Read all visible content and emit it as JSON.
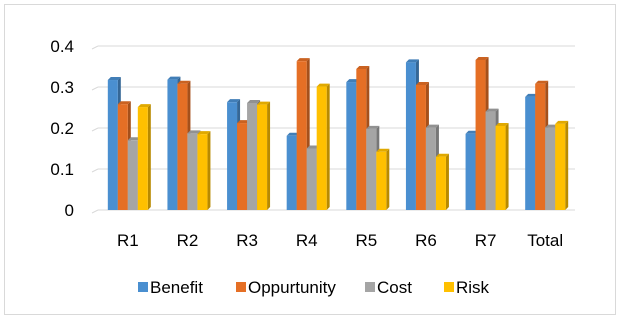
{
  "chart_data": {
    "type": "bar",
    "categories": [
      "R1",
      "R2",
      "R3",
      "R4",
      "R5",
      "R6",
      "R7",
      "Total"
    ],
    "series": [
      {
        "name": "Benefit",
        "color": "#4a8fd0",
        "values": [
          0.317,
          0.318,
          0.263,
          0.181,
          0.312,
          0.36,
          0.186,
          0.276
        ]
      },
      {
        "name": "Oppurtunity",
        "color": "#e56f25",
        "values": [
          0.258,
          0.308,
          0.212,
          0.363,
          0.344,
          0.305,
          0.366,
          0.308
        ]
      },
      {
        "name": "Cost",
        "color": "#a5a5a5",
        "values": [
          0.17,
          0.187,
          0.261,
          0.15,
          0.198,
          0.201,
          0.24,
          0.201
        ]
      },
      {
        "name": "Risk",
        "color": "#ffc000",
        "values": [
          0.251,
          0.185,
          0.257,
          0.301,
          0.142,
          0.13,
          0.205,
          0.21
        ]
      }
    ],
    "y_ticks": [
      "0",
      "0.1",
      "0.2",
      "0.3",
      "0.4"
    ],
    "ylim": [
      0,
      0.4
    ],
    "legend_position": "bottom",
    "grid": true
  }
}
